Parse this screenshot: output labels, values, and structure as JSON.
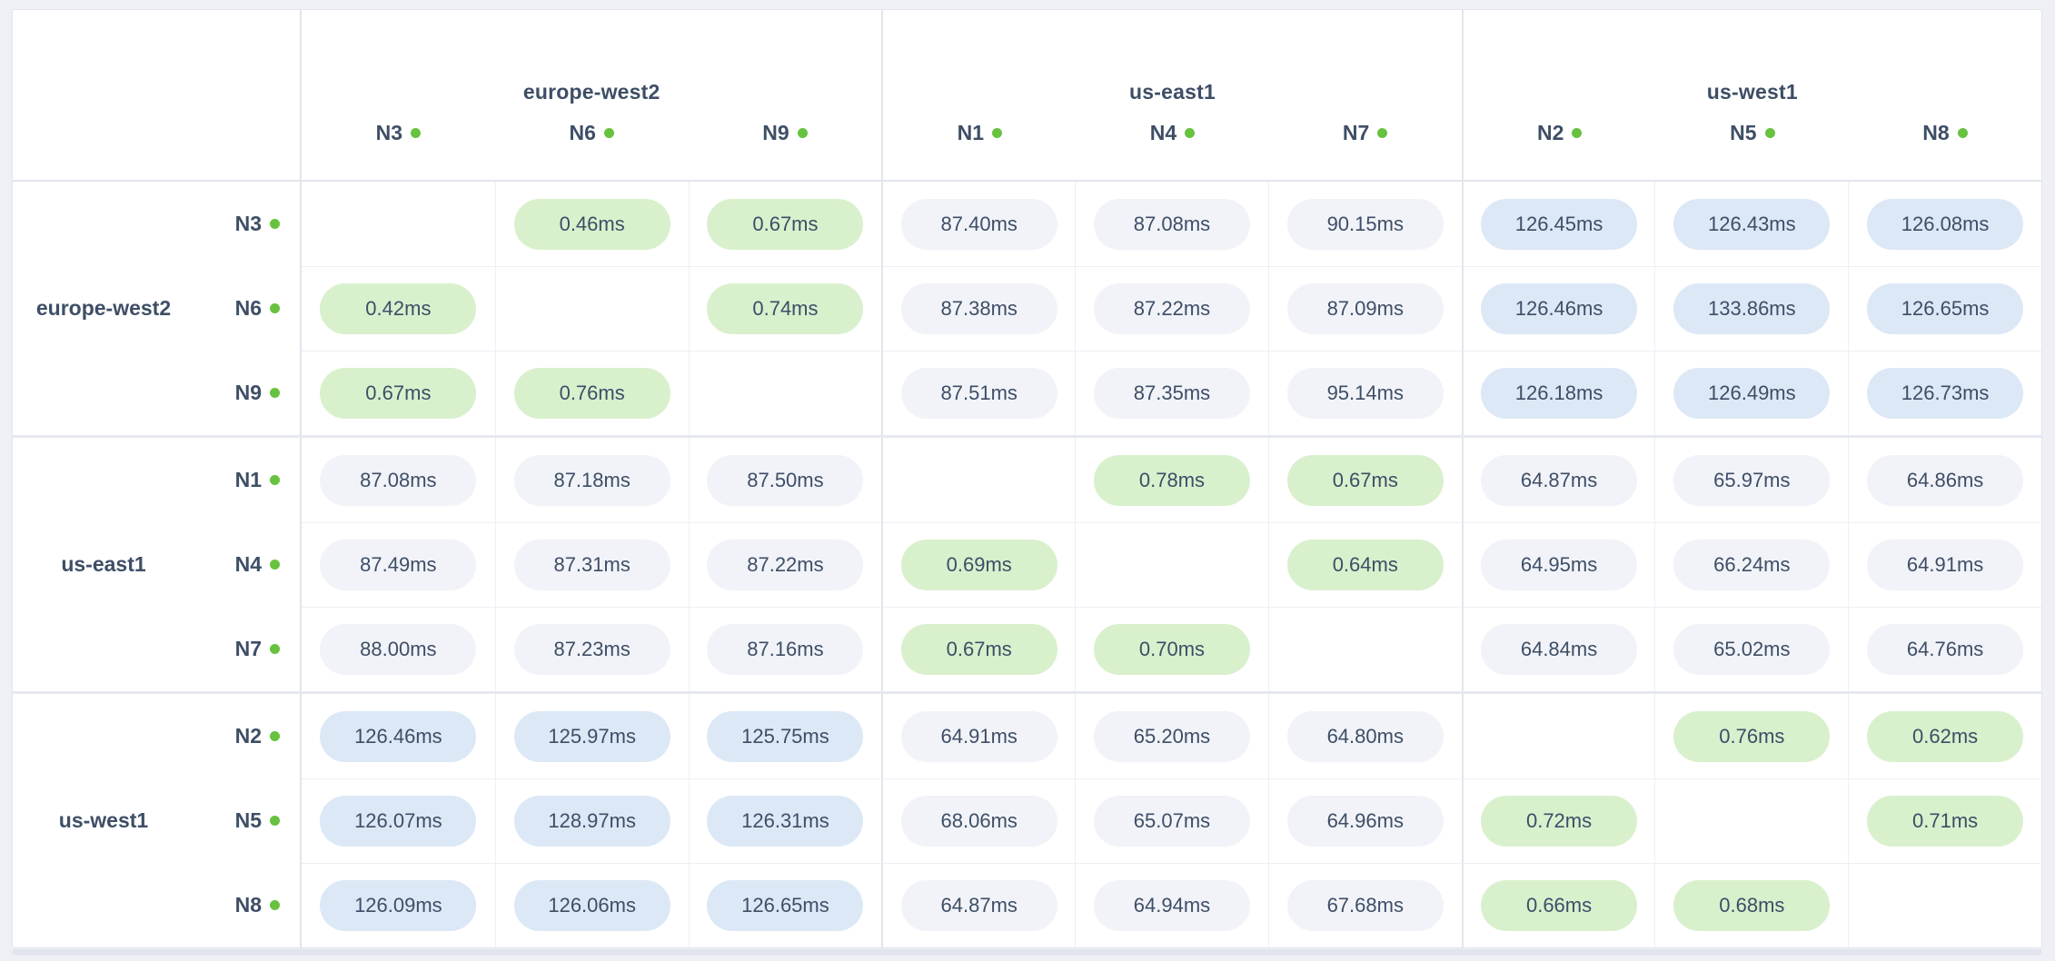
{
  "colors": {
    "page_bg": "#eef0f6",
    "card_bg": "#ffffff",
    "text": "#3e4e66",
    "green_pill_bg": "#d9f0cd",
    "gray_pill_bg": "#f1f3f8",
    "blue_pill_bg": "#dce8f6",
    "dot_green": "#67c23f",
    "border_strong": "#e2e5ec",
    "border_light": "#edeff5",
    "border_group": "#e6e9f0",
    "shadow_bar": "#e2e5ee"
  },
  "header": {
    "groups": [
      {
        "name": "europe-west2",
        "nodes": [
          "N3",
          "N6",
          "N9"
        ]
      },
      {
        "name": "us-east1",
        "nodes": [
          "N1",
          "N4",
          "N7"
        ]
      },
      {
        "name": "us-west1",
        "nodes": [
          "N2",
          "N5",
          "N8"
        ]
      }
    ]
  },
  "matrix": {
    "row_groups": [
      {
        "region": "europe-west2",
        "rows": [
          {
            "node": "N3",
            "cells": [
              {
                "v": "",
                "t": ""
              },
              {
                "v": "0.46ms",
                "t": "green"
              },
              {
                "v": "0.67ms",
                "t": "green"
              },
              {
                "v": "87.40ms",
                "t": "gray"
              },
              {
                "v": "87.08ms",
                "t": "gray"
              },
              {
                "v": "90.15ms",
                "t": "gray"
              },
              {
                "v": "126.45ms",
                "t": "blue"
              },
              {
                "v": "126.43ms",
                "t": "blue"
              },
              {
                "v": "126.08ms",
                "t": "blue"
              }
            ]
          },
          {
            "node": "N6",
            "cells": [
              {
                "v": "0.42ms",
                "t": "green"
              },
              {
                "v": "",
                "t": ""
              },
              {
                "v": "0.74ms",
                "t": "green"
              },
              {
                "v": "87.38ms",
                "t": "gray"
              },
              {
                "v": "87.22ms",
                "t": "gray"
              },
              {
                "v": "87.09ms",
                "t": "gray"
              },
              {
                "v": "126.46ms",
                "t": "blue"
              },
              {
                "v": "133.86ms",
                "t": "blue"
              },
              {
                "v": "126.65ms",
                "t": "blue"
              }
            ]
          },
          {
            "node": "N9",
            "cells": [
              {
                "v": "0.67ms",
                "t": "green"
              },
              {
                "v": "0.76ms",
                "t": "green"
              },
              {
                "v": "",
                "t": ""
              },
              {
                "v": "87.51ms",
                "t": "gray"
              },
              {
                "v": "87.35ms",
                "t": "gray"
              },
              {
                "v": "95.14ms",
                "t": "gray"
              },
              {
                "v": "126.18ms",
                "t": "blue"
              },
              {
                "v": "126.49ms",
                "t": "blue"
              },
              {
                "v": "126.73ms",
                "t": "blue"
              }
            ]
          }
        ]
      },
      {
        "region": "us-east1",
        "rows": [
          {
            "node": "N1",
            "cells": [
              {
                "v": "87.08ms",
                "t": "gray"
              },
              {
                "v": "87.18ms",
                "t": "gray"
              },
              {
                "v": "87.50ms",
                "t": "gray"
              },
              {
                "v": "",
                "t": ""
              },
              {
                "v": "0.78ms",
                "t": "green"
              },
              {
                "v": "0.67ms",
                "t": "green"
              },
              {
                "v": "64.87ms",
                "t": "gray"
              },
              {
                "v": "65.97ms",
                "t": "gray"
              },
              {
                "v": "64.86ms",
                "t": "gray"
              }
            ]
          },
          {
            "node": "N4",
            "cells": [
              {
                "v": "87.49ms",
                "t": "gray"
              },
              {
                "v": "87.31ms",
                "t": "gray"
              },
              {
                "v": "87.22ms",
                "t": "gray"
              },
              {
                "v": "0.69ms",
                "t": "green"
              },
              {
                "v": "",
                "t": ""
              },
              {
                "v": "0.64ms",
                "t": "green"
              },
              {
                "v": "64.95ms",
                "t": "gray"
              },
              {
                "v": "66.24ms",
                "t": "gray"
              },
              {
                "v": "64.91ms",
                "t": "gray"
              }
            ]
          },
          {
            "node": "N7",
            "cells": [
              {
                "v": "88.00ms",
                "t": "gray"
              },
              {
                "v": "87.23ms",
                "t": "gray"
              },
              {
                "v": "87.16ms",
                "t": "gray"
              },
              {
                "v": "0.67ms",
                "t": "green"
              },
              {
                "v": "0.70ms",
                "t": "green"
              },
              {
                "v": "",
                "t": ""
              },
              {
                "v": "64.84ms",
                "t": "gray"
              },
              {
                "v": "65.02ms",
                "t": "gray"
              },
              {
                "v": "64.76ms",
                "t": "gray"
              }
            ]
          }
        ]
      },
      {
        "region": "us-west1",
        "rows": [
          {
            "node": "N2",
            "cells": [
              {
                "v": "126.46ms",
                "t": "blue"
              },
              {
                "v": "125.97ms",
                "t": "blue"
              },
              {
                "v": "125.75ms",
                "t": "blue"
              },
              {
                "v": "64.91ms",
                "t": "gray"
              },
              {
                "v": "65.20ms",
                "t": "gray"
              },
              {
                "v": "64.80ms",
                "t": "gray"
              },
              {
                "v": "",
                "t": ""
              },
              {
                "v": "0.76ms",
                "t": "green"
              },
              {
                "v": "0.62ms",
                "t": "green"
              }
            ]
          },
          {
            "node": "N5",
            "cells": [
              {
                "v": "126.07ms",
                "t": "blue"
              },
              {
                "v": "128.97ms",
                "t": "blue"
              },
              {
                "v": "126.31ms",
                "t": "blue"
              },
              {
                "v": "68.06ms",
                "t": "gray"
              },
              {
                "v": "65.07ms",
                "t": "gray"
              },
              {
                "v": "64.96ms",
                "t": "gray"
              },
              {
                "v": "0.72ms",
                "t": "green"
              },
              {
                "v": "",
                "t": ""
              },
              {
                "v": "0.71ms",
                "t": "green"
              }
            ]
          },
          {
            "node": "N8",
            "cells": [
              {
                "v": "126.09ms",
                "t": "blue"
              },
              {
                "v": "126.06ms",
                "t": "blue"
              },
              {
                "v": "126.65ms",
                "t": "blue"
              },
              {
                "v": "64.87ms",
                "t": "gray"
              },
              {
                "v": "64.94ms",
                "t": "gray"
              },
              {
                "v": "67.68ms",
                "t": "gray"
              },
              {
                "v": "0.66ms",
                "t": "green"
              },
              {
                "v": "0.68ms",
                "t": "green"
              },
              {
                "v": "",
                "t": ""
              }
            ]
          }
        ]
      }
    ]
  }
}
